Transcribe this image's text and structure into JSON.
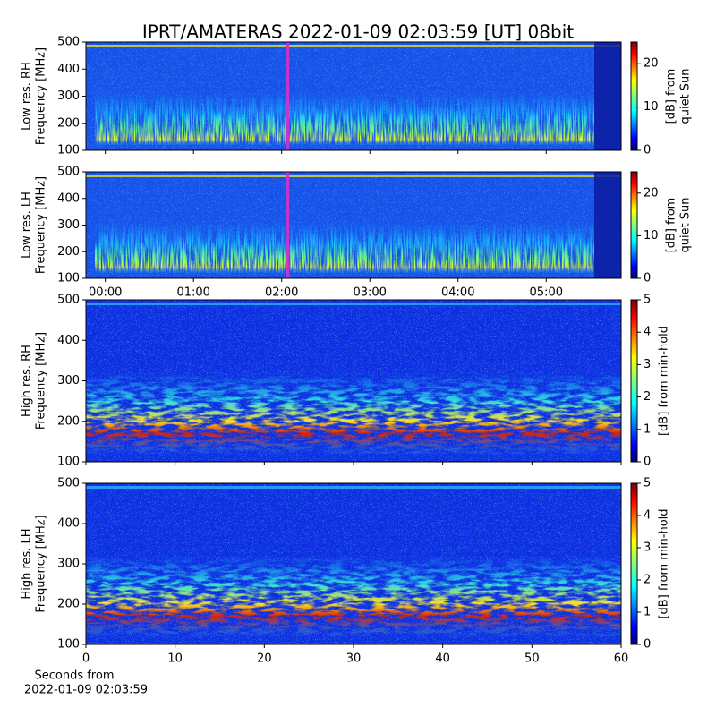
{
  "chart_data": [
    {
      "type": "heatmap",
      "title": "IPRT/AMATERAS 2022-01-09 02:03:59 [UT]   08bit",
      "ylabel": [
        "Low res. RH",
        "Frequency [MHz]"
      ],
      "ylim": [
        100,
        500
      ],
      "yticks": [
        100,
        200,
        300,
        400,
        500
      ],
      "xlim": [
        -0.22,
        5.85
      ],
      "cursor": 2.07,
      "cursor_color": "#cc33cc",
      "colormap": "jet",
      "colorbar": {
        "label": [
          "[dB] from",
          "quiet Sun"
        ],
        "lim": [
          0,
          25
        ],
        "ticks": [
          0,
          10,
          20
        ]
      }
    },
    {
      "type": "heatmap",
      "ylabel": [
        "Low res. LH",
        "Frequency [MHz]"
      ],
      "ylim": [
        100,
        500
      ],
      "yticks": [
        100,
        200,
        300,
        400,
        500
      ],
      "xlim": [
        -0.22,
        5.85
      ],
      "xticks": [
        {
          "value": 0,
          "label": "00:00"
        },
        {
          "value": 1,
          "label": "01:00"
        },
        {
          "value": 2,
          "label": "02:00"
        },
        {
          "value": 3,
          "label": "03:00"
        },
        {
          "value": 4,
          "label": "04:00"
        },
        {
          "value": 5,
          "label": "05:00"
        }
      ],
      "cursor": 2.07,
      "cursor_color": "#cc33cc",
      "colormap": "jet",
      "colorbar": {
        "label": [
          "[dB] from",
          "quiet Sun"
        ],
        "lim": [
          0,
          25
        ],
        "ticks": [
          0,
          10,
          20
        ]
      }
    },
    {
      "type": "heatmap",
      "ylabel": [
        "High res. RH",
        "Frequency [MHz]"
      ],
      "ylim": [
        100,
        500
      ],
      "yticks": [
        100,
        200,
        300,
        400,
        500
      ],
      "xlim": [
        0,
        60
      ],
      "colormap": "jet",
      "colorbar": {
        "label": [
          "[dB] from min-hold"
        ],
        "lim": [
          0,
          5
        ],
        "ticks": [
          0,
          1,
          2,
          3,
          4,
          5
        ]
      }
    },
    {
      "type": "heatmap",
      "ylabel": [
        "High res. LH",
        "Frequency [MHz]"
      ],
      "ylim": [
        100,
        500
      ],
      "yticks": [
        100,
        200,
        300,
        400,
        500
      ],
      "xlim": [
        0,
        60
      ],
      "xticks": [
        0,
        10,
        20,
        30,
        40,
        50,
        60
      ],
      "xlabel": [
        "Seconds from",
        "2022-01-09 02:03:59"
      ],
      "colormap": "jet",
      "colorbar": {
        "label": [
          "[dB] from min-hold"
        ],
        "lim": [
          0,
          5
        ],
        "ticks": [
          0,
          1,
          2,
          3,
          4,
          5
        ]
      }
    }
  ]
}
